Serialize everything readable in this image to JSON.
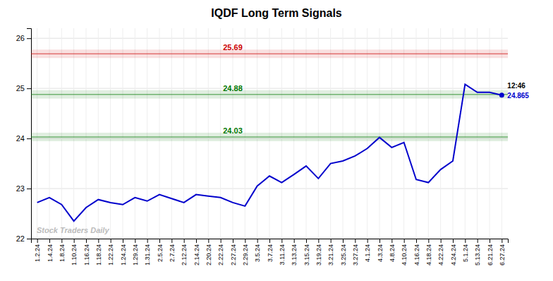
{
  "chart_data": {
    "type": "line",
    "title": "IQDF Long Term Signals",
    "categories": [
      "1.2.24",
      "1.4.24",
      "1.8.24",
      "1.10.24",
      "1.16.24",
      "1.18.24",
      "1.22.24",
      "1.24.24",
      "1.29.24",
      "1.31.24",
      "2.5.24",
      "2.7.24",
      "2.12.24",
      "2.14.24",
      "2.20.24",
      "2.22.24",
      "2.27.24",
      "2.29.24",
      "3.5.24",
      "3.7.24",
      "3.11.24",
      "3.13.24",
      "3.15.24",
      "3.19.24",
      "3.21.24",
      "3.25.24",
      "3.27.24",
      "4.1.24",
      "4.3.24",
      "4.8.24",
      "4.10.24",
      "4.16.24",
      "4.18.24",
      "4.22.24",
      "4.24.24",
      "5.1.24",
      "5.13.24",
      "6.21.24",
      "6.27.24"
    ],
    "values": [
      22.72,
      22.82,
      22.68,
      22.35,
      22.62,
      22.78,
      22.72,
      22.68,
      22.82,
      22.75,
      22.88,
      22.8,
      22.72,
      22.88,
      22.85,
      22.82,
      22.72,
      22.65,
      23.05,
      23.25,
      23.12,
      23.28,
      23.45,
      23.2,
      23.5,
      23.55,
      23.65,
      23.8,
      24.02,
      23.82,
      23.92,
      23.18,
      23.12,
      23.38,
      23.55,
      25.08,
      24.92,
      24.92,
      24.865
    ],
    "color": "#0000CC",
    "ylim": [
      22,
      26.2
    ],
    "yticks": [
      22,
      23,
      24,
      25,
      26
    ],
    "grid": true,
    "hlines": [
      {
        "value": 25.69,
        "label": "25.69",
        "color": "#cc0000"
      },
      {
        "value": 24.88,
        "label": "24.88",
        "color": "#007700"
      },
      {
        "value": 24.03,
        "label": "24.03",
        "color": "#007700"
      }
    ],
    "annotations": [
      {
        "text": "12:46",
        "category": "6.27.24"
      },
      {
        "text": "24.865",
        "value": 24.865,
        "category": "6.27.24",
        "color": "#0000CC"
      },
      {
        "text": "Stock Traders Daily"
      }
    ]
  }
}
